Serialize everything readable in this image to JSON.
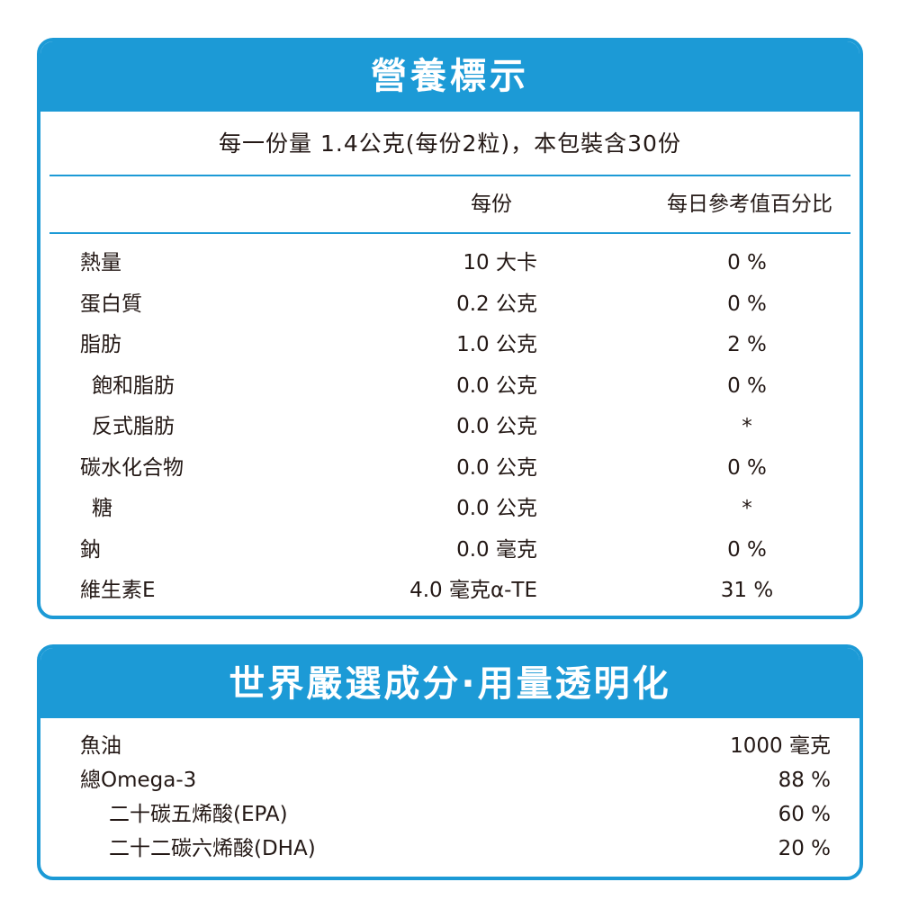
{
  "nutrition": {
    "title": "營養標示",
    "serving": "每一份量 1.4公克(每份2粒)，本包裝含30份",
    "col_per_serving": "每份",
    "col_daily_value": "每日參考值百分比",
    "rows": [
      {
        "name": "熱量",
        "value": "10 大卡",
        "pct": "0 %",
        "indent": false
      },
      {
        "name": "蛋白質",
        "value": "0.2 公克",
        "pct": "0 %",
        "indent": false
      },
      {
        "name": "脂肪",
        "value": "1.0 公克",
        "pct": "2 %",
        "indent": false
      },
      {
        "name": "飽和脂肪",
        "value": "0.0 公克",
        "pct": "0 %",
        "indent": true
      },
      {
        "name": "反式脂肪",
        "value": "0.0 公克",
        "pct": "*",
        "indent": true
      },
      {
        "name": "碳水化合物",
        "value": "0.0 公克",
        "pct": "0 %",
        "indent": false
      },
      {
        "name": "糖",
        "value": "0.0 公克",
        "pct": "*",
        "indent": true
      },
      {
        "name": "鈉",
        "value": "0.0 毫克",
        "pct": "0 %",
        "indent": false
      },
      {
        "name": "維生素E",
        "value": "4.0 毫克α-TE",
        "pct": "31 %",
        "indent": false
      }
    ]
  },
  "ingredients": {
    "title": "世界嚴選成分·用量透明化",
    "rows": [
      {
        "name": "魚油",
        "value": "1000 毫克",
        "indent": false
      },
      {
        "name": "總Omega-3",
        "value": "88 %",
        "indent": false
      },
      {
        "name": "二十碳五烯酸(EPA)",
        "value": "60 %",
        "indent": true
      },
      {
        "name": "二十二碳六烯酸(DHA)",
        "value": "20 %",
        "indent": true
      }
    ]
  },
  "colors": {
    "accent": "#1c9ad6",
    "text": "#231815",
    "background": "#ffffff"
  }
}
